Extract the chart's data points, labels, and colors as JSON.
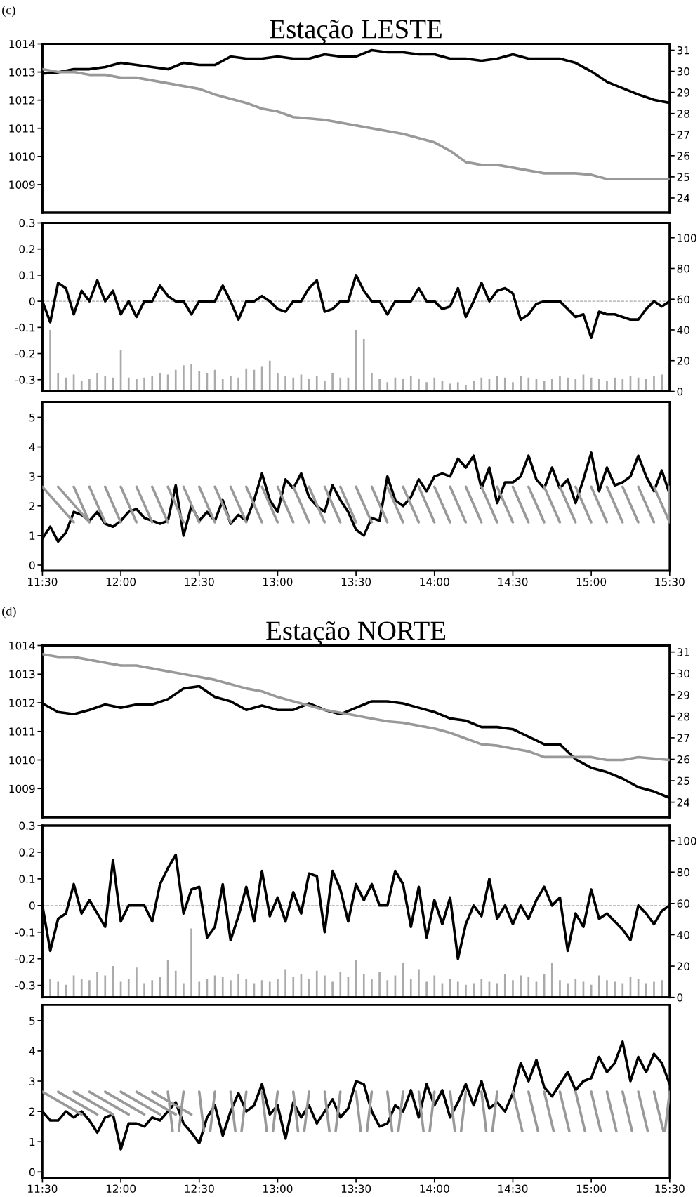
{
  "chart_data": [
    {
      "type": "line",
      "title": "Estação LESTE",
      "annotations": [
        "(c)"
      ],
      "x": [
        11.5,
        11.6,
        11.7,
        11.8,
        11.9,
        12.0,
        12.1,
        12.2,
        12.3,
        12.4,
        12.5,
        12.6,
        12.7,
        12.8,
        12.9,
        13.0,
        13.1,
        13.2,
        13.3,
        13.4,
        13.5,
        13.6,
        13.7,
        13.8,
        13.9,
        14.0,
        14.1,
        14.2,
        14.3,
        14.4,
        14.5,
        14.6,
        14.7,
        14.8,
        14.9,
        15.0,
        15.1,
        15.2,
        15.3,
        15.4,
        15.5
      ],
      "series": [
        {
          "color": "#999999",
          "values": [
            1013.1,
            1013.0,
            1013.0,
            1012.9,
            1012.9,
            1012.8,
            1012.8,
            1012.7,
            1012.6,
            1012.5,
            1012.4,
            1012.2,
            1012.05,
            1011.9,
            1011.7,
            1011.6,
            1011.4,
            1011.35,
            1011.3,
            1011.2,
            1011.1,
            1011.0,
            1010.9,
            1010.8,
            1010.65,
            1010.5,
            1010.2,
            1009.8,
            1009.7,
            1009.7,
            1009.6,
            1009.5,
            1009.4,
            1009.4,
            1009.4,
            1009.35,
            1009.2,
            1009.2,
            1009.2,
            1009.2,
            1009.2
          ]
        },
        {
          "color": "#000000",
          "axis": "y2",
          "values": [
            29.9,
            29.95,
            30.1,
            30.1,
            30.2,
            30.4,
            30.3,
            30.2,
            30.1,
            30.4,
            30.3,
            30.3,
            30.7,
            30.6,
            30.6,
            30.7,
            30.6,
            30.6,
            30.8,
            30.7,
            30.7,
            31.0,
            30.9,
            30.9,
            30.8,
            30.8,
            30.6,
            30.6,
            30.5,
            30.6,
            30.8,
            30.6,
            30.6,
            30.6,
            30.4,
            30.0,
            29.5,
            29.2,
            28.9,
            28.65,
            28.5
          ]
        }
      ],
      "xlim": [
        11.5,
        15.5
      ],
      "ylim": [
        1008,
        1014
      ],
      "yticks": [
        1009,
        1010,
        1011,
        1012,
        1013,
        1014
      ],
      "y2lim": [
        23.3,
        31.3
      ],
      "y2ticks": [
        24,
        25,
        26,
        27,
        28,
        29,
        30,
        31
      ],
      "tick_labels": "y"
    },
    {
      "type": "line",
      "x": [
        11.5,
        11.55,
        11.6,
        11.65,
        11.7,
        11.75,
        11.8,
        11.85,
        11.9,
        11.95,
        12.0,
        12.05,
        12.1,
        12.15,
        12.2,
        12.25,
        12.3,
        12.35,
        12.4,
        12.45,
        12.5,
        12.55,
        12.6,
        12.65,
        12.7,
        12.75,
        12.8,
        12.85,
        12.9,
        12.95,
        13.0,
        13.05,
        13.1,
        13.15,
        13.2,
        13.25,
        13.3,
        13.35,
        13.4,
        13.45,
        13.5,
        13.55,
        13.6,
        13.65,
        13.7,
        13.75,
        13.8,
        13.85,
        13.9,
        13.95,
        14.0,
        14.05,
        14.1,
        14.15,
        14.2,
        14.25,
        14.3,
        14.35,
        14.4,
        14.45,
        14.5,
        14.55,
        14.6,
        14.65,
        14.7,
        14.75,
        14.8,
        14.85,
        14.9,
        14.95,
        15.0,
        15.05,
        15.1,
        15.15,
        15.2,
        15.25,
        15.3,
        15.35,
        15.4,
        15.45,
        15.5
      ],
      "series": [
        {
          "type": "bar",
          "axis": "y2",
          "color": "#aaaaaa",
          "values": [
            null,
            40,
            12,
            9,
            11,
            7,
            8,
            12,
            10,
            9,
            27,
            9,
            8,
            9,
            10,
            12,
            11,
            14,
            17,
            18,
            13,
            12,
            14,
            8,
            10,
            9,
            15,
            14,
            16,
            20,
            12,
            10,
            9,
            11,
            8,
            10,
            7,
            12,
            9,
            9,
            40,
            34,
            12,
            8,
            6,
            9,
            8,
            10,
            8,
            6,
            9,
            7,
            5,
            6,
            4,
            7,
            9,
            8,
            10,
            9,
            6,
            10,
            9,
            8,
            7,
            8,
            10,
            9,
            8,
            11,
            9,
            8,
            7,
            9,
            8,
            10,
            9,
            8,
            10,
            11,
            null
          ]
        },
        {
          "color": "#000000",
          "values": [
            0.0,
            -0.08,
            0.07,
            0.05,
            -0.05,
            0.04,
            0.0,
            0.08,
            0.0,
            0.04,
            -0.05,
            0.0,
            -0.06,
            0.0,
            0.0,
            0.06,
            0.02,
            0.0,
            0.0,
            -0.05,
            0.0,
            0.0,
            0.0,
            0.06,
            0.0,
            -0.07,
            0.0,
            0.0,
            0.02,
            0.0,
            -0.03,
            -0.04,
            0.0,
            0.0,
            0.05,
            0.08,
            -0.04,
            -0.03,
            0.0,
            0.0,
            0.1,
            0.04,
            0.0,
            0.0,
            -0.05,
            0.0,
            0.0,
            0.0,
            0.05,
            0.0,
            0.0,
            -0.03,
            -0.02,
            0.05,
            -0.06,
            0.0,
            0.07,
            0.0,
            0.04,
            0.05,
            0.03,
            -0.07,
            -0.05,
            -0.01,
            0.0,
            0.0,
            0.0,
            -0.03,
            -0.06,
            -0.05,
            -0.14,
            -0.04,
            -0.05,
            -0.05,
            -0.06,
            -0.07,
            -0.07,
            -0.03,
            0.0,
            -0.02,
            0.0
          ]
        }
      ],
      "xlim": [
        11.5,
        15.5
      ],
      "ylim": [
        -0.345,
        0.3
      ],
      "yticks": [
        -0.3,
        -0.2,
        -0.1,
        0,
        0.1,
        0.2,
        0.3
      ],
      "y2lim": [
        0,
        109.7
      ],
      "y2ticks": [
        0,
        20,
        40,
        60,
        80,
        100
      ],
      "tick_labels": "y",
      "ref_lines": [
        {
          "axis": "y",
          "value": 0,
          "color": "#aaaaaa",
          "line_style": "dashed"
        }
      ]
    },
    {
      "type": "line",
      "x": [
        11.5,
        11.55,
        11.6,
        11.65,
        11.7,
        11.75,
        11.8,
        11.85,
        11.9,
        11.95,
        12.0,
        12.05,
        12.1,
        12.15,
        12.2,
        12.25,
        12.3,
        12.35,
        12.4,
        12.45,
        12.5,
        12.55,
        12.6,
        12.65,
        12.7,
        12.75,
        12.8,
        12.85,
        12.9,
        12.95,
        13.0,
        13.05,
        13.1,
        13.15,
        13.2,
        13.25,
        13.3,
        13.35,
        13.4,
        13.45,
        13.5,
        13.55,
        13.6,
        13.65,
        13.7,
        13.75,
        13.8,
        13.85,
        13.9,
        13.95,
        14.0,
        14.05,
        14.1,
        14.15,
        14.2,
        14.25,
        14.3,
        14.35,
        14.4,
        14.45,
        14.5,
        14.55,
        14.6,
        14.65,
        14.7,
        14.75,
        14.8,
        14.85,
        14.9,
        14.95,
        15.0,
        15.05,
        15.1,
        15.15,
        15.2,
        15.25,
        15.3,
        15.35,
        15.4,
        15.45,
        15.5
      ],
      "series": [
        {
          "color": "#000000",
          "values": [
            0.9,
            1.3,
            0.8,
            1.1,
            1.8,
            1.7,
            1.5,
            1.8,
            1.4,
            1.3,
            1.5,
            1.8,
            1.9,
            1.6,
            1.5,
            1.4,
            1.5,
            2.7,
            1.0,
            2.0,
            1.5,
            1.8,
            1.5,
            2.2,
            1.4,
            1.7,
            1.5,
            2.2,
            3.1,
            2.2,
            1.8,
            2.9,
            2.6,
            3.1,
            2.3,
            2.0,
            1.8,
            2.7,
            2.2,
            1.8,
            1.2,
            1.0,
            1.6,
            1.5,
            3.0,
            2.2,
            2.0,
            2.3,
            2.9,
            2.5,
            3.0,
            3.1,
            3.0,
            3.6,
            3.3,
            3.7,
            2.6,
            3.3,
            2.1,
            2.8,
            2.8,
            3.0,
            3.7,
            2.9,
            2.6,
            3.3,
            2.6,
            2.9,
            2.1,
            2.9,
            3.8,
            2.5,
            3.3,
            2.7,
            2.8,
            3.0,
            3.7,
            3.0,
            2.5,
            3.2,
            2.4
          ]
        },
        {
          "color": "#999999",
          "x": [
            11.5,
            11.7,
            null,
            11.6,
            11.8,
            null,
            11.7,
            11.8,
            null,
            11.8,
            11.9,
            null,
            11.9,
            12.0,
            null,
            12.0,
            12.1,
            null,
            12.1,
            12.2,
            null,
            12.2,
            12.3,
            null,
            12.3,
            12.4,
            null,
            12.4,
            12.5,
            null,
            12.5,
            12.6,
            null,
            12.6,
            12.7,
            null,
            12.7,
            12.8,
            null,
            12.8,
            12.9,
            null,
            12.9,
            13.0,
            null,
            13.0,
            13.1,
            null,
            13.1,
            13.2,
            null,
            13.2,
            13.3,
            null,
            13.3,
            13.4,
            null,
            13.4,
            13.5,
            null,
            13.5,
            13.6,
            null,
            13.6,
            13.7,
            null,
            13.7,
            13.8,
            null,
            13.8,
            13.9,
            null,
            13.9,
            14.0,
            null,
            14.0,
            14.1,
            null,
            14.1,
            14.2,
            null,
            14.2,
            14.3,
            null,
            14.3,
            14.4,
            null,
            14.4,
            14.5,
            null,
            14.5,
            14.6,
            null,
            14.6,
            14.7,
            null,
            14.7,
            14.8,
            null,
            14.8,
            14.9,
            null,
            14.9,
            15.0,
            null,
            15.0,
            15.1,
            null,
            15.1,
            15.2,
            null,
            15.2,
            15.3,
            null,
            15.3,
            15.4,
            null,
            15.4,
            15.5,
            null,
            15.5,
            15.5,
            null
          ],
          "values": [
            2.65,
            1.45,
            null,
            2.65,
            1.45,
            null,
            2.65,
            1.45,
            null,
            2.65,
            1.45,
            null,
            2.65,
            1.45,
            null,
            2.65,
            1.45,
            null,
            2.65,
            1.45,
            null,
            2.65,
            1.45,
            null,
            2.65,
            1.45,
            null,
            2.65,
            1.45,
            null,
            2.65,
            1.45,
            null,
            2.65,
            1.45,
            null,
            2.65,
            1.45,
            null,
            2.65,
            1.45,
            null,
            2.65,
            1.45,
            null,
            2.65,
            1.45,
            null,
            2.65,
            1.45,
            null,
            2.65,
            1.45,
            null,
            2.65,
            1.45,
            null,
            2.65,
            1.45,
            null,
            2.65,
            1.45,
            null,
            2.65,
            1.45,
            null,
            2.65,
            1.45,
            null,
            2.65,
            1.45,
            null,
            2.65,
            1.45,
            null,
            2.65,
            1.45,
            null,
            2.65,
            1.45,
            null,
            2.65,
            1.45,
            null,
            2.65,
            1.45,
            null,
            2.65,
            1.45,
            null,
            2.65,
            1.45,
            null,
            2.65,
            1.45,
            null,
            2.65,
            1.45,
            null,
            2.65,
            1.45,
            null,
            2.65,
            1.45,
            null,
            2.65,
            1.45,
            null,
            2.65,
            1.45,
            null,
            2.65,
            1.45,
            null,
            2.65,
            1.45,
            null,
            2.65,
            1.45,
            null,
            2.65,
            1.45,
            null
          ]
        }
      ],
      "xlim": [
        11.5,
        15.5
      ],
      "ylim": [
        -0.19,
        5.52
      ],
      "yticks": [
        0,
        1,
        2,
        3,
        4,
        5
      ],
      "xticks": [
        {
          "value": 11.5,
          "label": "11:30"
        },
        {
          "value": 12.0,
          "label": "12:00"
        },
        {
          "value": 12.5,
          "label": "12:30"
        },
        {
          "value": 13.0,
          "label": "13:00"
        },
        {
          "value": 13.5,
          "label": "13:30"
        },
        {
          "value": 14.0,
          "label": "14:00"
        },
        {
          "value": 14.5,
          "label": "14:30"
        },
        {
          "value": 15.0,
          "label": "15:00"
        },
        {
          "value": 15.5,
          "label": "15:30"
        }
      ]
    },
    {
      "type": "line",
      "title": "Estação NORTE",
      "annotations": [
        "(d)"
      ],
      "x": [
        11.5,
        11.6,
        11.7,
        11.8,
        11.9,
        12.0,
        12.1,
        12.2,
        12.3,
        12.4,
        12.5,
        12.6,
        12.7,
        12.8,
        12.9,
        13.0,
        13.1,
        13.2,
        13.3,
        13.4,
        13.5,
        13.6,
        13.7,
        13.8,
        13.9,
        14.0,
        14.1,
        14.2,
        14.3,
        14.4,
        14.5,
        14.6,
        14.7,
        14.8,
        14.9,
        15.0,
        15.1,
        15.2,
        15.3,
        15.4,
        15.5
      ],
      "series": [
        {
          "color": "#999999",
          "values": [
            1013.7,
            1013.6,
            1013.6,
            1013.5,
            1013.4,
            1013.3,
            1013.3,
            1013.2,
            1013.1,
            1013.0,
            1012.9,
            1012.8,
            1012.65,
            1012.5,
            1012.4,
            1012.2,
            1012.05,
            1011.9,
            1011.75,
            1011.65,
            1011.55,
            1011.45,
            1011.35,
            1011.3,
            1011.2,
            1011.1,
            1010.95,
            1010.75,
            1010.55,
            1010.5,
            1010.4,
            1010.3,
            1010.1,
            1010.1,
            1010.1,
            1010.1,
            1010.0,
            1010.0,
            1010.1,
            1010.05,
            1010.0
          ]
        },
        {
          "color": "#000000",
          "axis": "y2",
          "values": [
            28.6,
            28.2,
            28.1,
            28.3,
            28.55,
            28.4,
            28.55,
            28.55,
            28.8,
            29.3,
            29.4,
            28.9,
            28.7,
            28.3,
            28.5,
            28.3,
            28.3,
            28.6,
            28.3,
            28.1,
            28.4,
            28.7,
            28.7,
            28.6,
            28.4,
            28.2,
            27.9,
            27.8,
            27.5,
            27.5,
            27.4,
            27.05,
            26.7,
            26.7,
            26.0,
            25.6,
            25.4,
            25.1,
            24.7,
            24.5,
            24.2
          ]
        }
      ],
      "xlim": [
        11.5,
        15.5
      ],
      "ylim": [
        1008,
        1014
      ],
      "yticks": [
        1009,
        1010,
        1011,
        1012,
        1013,
        1014
      ],
      "y2lim": [
        23.3,
        31.3
      ],
      "y2ticks": [
        24,
        25,
        26,
        27,
        28,
        29,
        30,
        31
      ],
      "tick_labels": "y"
    },
    {
      "type": "line",
      "x": [
        11.5,
        11.55,
        11.6,
        11.65,
        11.7,
        11.75,
        11.8,
        11.85,
        11.9,
        11.95,
        12.0,
        12.05,
        12.1,
        12.15,
        12.2,
        12.25,
        12.3,
        12.35,
        12.4,
        12.45,
        12.5,
        12.55,
        12.6,
        12.65,
        12.7,
        12.75,
        12.8,
        12.85,
        12.9,
        12.95,
        13.0,
        13.05,
        13.1,
        13.15,
        13.2,
        13.25,
        13.3,
        13.35,
        13.4,
        13.45,
        13.5,
        13.55,
        13.6,
        13.65,
        13.7,
        13.75,
        13.8,
        13.85,
        13.9,
        13.95,
        14.0,
        14.05,
        14.1,
        14.15,
        14.2,
        14.25,
        14.3,
        14.35,
        14.4,
        14.45,
        14.5,
        14.55,
        14.6,
        14.65,
        14.7,
        14.75,
        14.8,
        14.85,
        14.9,
        14.95,
        15.0,
        15.05,
        15.1,
        15.15,
        15.2,
        15.25,
        15.3,
        15.35,
        15.4,
        15.45,
        15.5
      ],
      "series": [
        {
          "type": "bar",
          "axis": "y2",
          "color": "#aaaaaa",
          "values": [
            null,
            12,
            10,
            8,
            14,
            12,
            11,
            16,
            14,
            20,
            10,
            12,
            19,
            9,
            11,
            13,
            24,
            17,
            9,
            44,
            10,
            12,
            14,
            13,
            11,
            15,
            12,
            9,
            11,
            10,
            12,
            18,
            13,
            15,
            12,
            17,
            14,
            10,
            16,
            13,
            24,
            15,
            12,
            16,
            11,
            14,
            22,
            12,
            18,
            10,
            14,
            9,
            12,
            10,
            8,
            9,
            12,
            10,
            9,
            15,
            11,
            14,
            13,
            10,
            15,
            22,
            11,
            9,
            12,
            10,
            8,
            14,
            11,
            10,
            9,
            13,
            12,
            9,
            10,
            11,
            null
          ]
        },
        {
          "color": "#000000",
          "values": [
            0.0,
            -0.17,
            -0.05,
            -0.03,
            0.08,
            -0.03,
            0.02,
            -0.03,
            -0.08,
            0.17,
            -0.06,
            0.0,
            0.0,
            0.0,
            -0.06,
            0.08,
            0.14,
            0.19,
            -0.03,
            0.06,
            0.07,
            -0.12,
            -0.08,
            0.08,
            -0.13,
            -0.04,
            0.07,
            -0.06,
            0.13,
            -0.04,
            0.03,
            -0.06,
            0.05,
            -0.03,
            0.12,
            0.11,
            -0.1,
            0.13,
            0.06,
            -0.06,
            0.08,
            0.02,
            0.08,
            0.0,
            0.0,
            0.13,
            0.08,
            -0.08,
            0.07,
            -0.12,
            0.02,
            -0.07,
            0.03,
            -0.2,
            -0.07,
            0.0,
            -0.04,
            0.1,
            -0.05,
            0.0,
            -0.07,
            0.0,
            -0.05,
            0.02,
            0.07,
            0.0,
            0.03,
            -0.17,
            -0.03,
            -0.08,
            0.06,
            -0.05,
            -0.03,
            -0.06,
            -0.09,
            -0.13,
            0.0,
            -0.03,
            -0.07,
            -0.02,
            0.0
          ]
        }
      ],
      "xlim": [
        11.5,
        15.5
      ],
      "ylim": [
        -0.345,
        0.3
      ],
      "yticks": [
        -0.3,
        -0.2,
        -0.1,
        0,
        0.1,
        0.2,
        0.3
      ],
      "y2lim": [
        0,
        109.7
      ],
      "y2ticks": [
        0,
        20,
        40,
        60,
        80,
        100
      ],
      "tick_labels": "y",
      "ref_lines": [
        {
          "axis": "y",
          "value": 0,
          "color": "#aaaaaa",
          "line_style": "dashed"
        }
      ]
    },
    {
      "type": "line",
      "x": [
        11.5,
        11.55,
        11.6,
        11.65,
        11.7,
        11.75,
        11.8,
        11.85,
        11.9,
        11.95,
        12.0,
        12.05,
        12.1,
        12.15,
        12.2,
        12.25,
        12.3,
        12.35,
        12.4,
        12.45,
        12.5,
        12.55,
        12.6,
        12.65,
        12.7,
        12.75,
        12.8,
        12.85,
        12.9,
        12.95,
        13.0,
        13.05,
        13.1,
        13.15,
        13.2,
        13.25,
        13.3,
        13.35,
        13.4,
        13.45,
        13.5,
        13.55,
        13.6,
        13.65,
        13.7,
        13.75,
        13.8,
        13.85,
        13.9,
        13.95,
        14.0,
        14.05,
        14.1,
        14.15,
        14.2,
        14.25,
        14.3,
        14.35,
        14.4,
        14.45,
        14.5,
        14.55,
        14.6,
        14.65,
        14.7,
        14.75,
        14.8,
        14.85,
        14.9,
        14.95,
        15.0,
        15.05,
        15.1,
        15.15,
        15.2,
        15.25,
        15.3,
        15.35,
        15.4,
        15.45,
        15.5
      ],
      "series": [
        {
          "color": "#000000",
          "values": [
            2.0,
            1.7,
            1.7,
            2.0,
            1.8,
            2.0,
            1.7,
            1.3,
            1.8,
            1.9,
            0.75,
            1.6,
            1.6,
            1.5,
            1.8,
            1.7,
            2.0,
            2.3,
            1.6,
            1.3,
            0.95,
            1.8,
            2.2,
            1.2,
            2.0,
            2.6,
            2.0,
            2.2,
            2.9,
            1.9,
            2.2,
            1.1,
            2.3,
            1.8,
            2.2,
            1.6,
            2.0,
            2.4,
            1.8,
            2.1,
            3.0,
            2.9,
            2.0,
            1.5,
            1.6,
            2.2,
            2.0,
            2.7,
            1.8,
            2.9,
            2.2,
            2.7,
            1.8,
            2.3,
            2.9,
            2.2,
            3.0,
            2.1,
            2.3,
            2.0,
            2.6,
            3.6,
            3.0,
            3.7,
            2.8,
            2.5,
            2.9,
            3.3,
            2.7,
            3.0,
            3.1,
            3.8,
            3.3,
            3.6,
            4.3,
            3.0,
            3.8,
            3.3,
            3.9,
            3.6,
            2.9
          ]
        },
        {
          "color": "#999999",
          "x": [
            11.5,
            11.75,
            null,
            11.6,
            11.85,
            null,
            11.7,
            11.95,
            null,
            11.8,
            12.05,
            null,
            11.9,
            12.15,
            null,
            12.0,
            12.25,
            null,
            12.1,
            12.35,
            null,
            12.2,
            12.45,
            null,
            12.3,
            12.33,
            null,
            12.4,
            12.37,
            null,
            12.5,
            12.53,
            null,
            12.6,
            12.57,
            null,
            12.7,
            12.73,
            null,
            12.8,
            12.77,
            null,
            12.9,
            12.93,
            null,
            13.0,
            12.97,
            null,
            13.1,
            13.13,
            null,
            13.2,
            13.17,
            null,
            13.3,
            13.33,
            null,
            13.4,
            13.37,
            null,
            13.5,
            13.53,
            null,
            13.6,
            13.57,
            null,
            13.7,
            13.73,
            null,
            13.8,
            13.77,
            null,
            13.9,
            13.93,
            null,
            14.0,
            13.97,
            null,
            14.1,
            14.13,
            null,
            14.2,
            14.17,
            null,
            14.3,
            14.33,
            null,
            14.4,
            14.37,
            null,
            14.5,
            14.56,
            null,
            14.6,
            14.66,
            null,
            14.7,
            14.76,
            null,
            14.8,
            14.86,
            null,
            14.9,
            14.96,
            null,
            15.0,
            15.06,
            null,
            15.1,
            15.16,
            null,
            15.2,
            15.26,
            null,
            15.3,
            15.36,
            null,
            15.4,
            15.46,
            null,
            15.5,
            15.47,
            null
          ],
          "values": [
            2.65,
            1.9,
            null,
            2.65,
            1.9,
            null,
            2.65,
            1.9,
            null,
            2.65,
            1.9,
            null,
            2.65,
            1.9,
            null,
            2.65,
            1.9,
            null,
            2.65,
            1.9,
            null,
            2.65,
            1.9,
            null,
            2.65,
            1.35,
            null,
            2.65,
            1.35,
            null,
            2.65,
            1.35,
            null,
            2.65,
            1.35,
            null,
            2.65,
            1.35,
            null,
            2.65,
            1.35,
            null,
            2.65,
            1.35,
            null,
            2.65,
            1.35,
            null,
            2.65,
            1.35,
            null,
            2.65,
            1.35,
            null,
            2.65,
            1.35,
            null,
            2.65,
            1.35,
            null,
            2.65,
            1.35,
            null,
            2.65,
            1.35,
            null,
            2.65,
            1.35,
            null,
            2.65,
            1.35,
            null,
            2.65,
            1.35,
            null,
            2.65,
            1.35,
            null,
            2.65,
            1.35,
            null,
            2.65,
            1.35,
            null,
            2.65,
            1.35,
            null,
            2.65,
            1.35,
            null,
            2.65,
            1.35,
            null,
            2.65,
            1.35,
            null,
            2.65,
            1.35,
            null,
            2.65,
            1.35,
            null,
            2.65,
            1.35,
            null,
            2.65,
            1.35,
            null,
            2.65,
            1.35,
            null,
            2.65,
            1.35,
            null,
            2.65,
            1.35,
            null,
            2.65,
            1.35,
            null,
            2.65,
            1.35,
            null
          ]
        }
      ],
      "xlim": [
        11.5,
        15.5
      ],
      "ylim": [
        -0.19,
        5.52
      ],
      "yticks": [
        0,
        1,
        2,
        3,
        4,
        5
      ],
      "xticks": [
        {
          "value": 11.5,
          "label": "11:30"
        },
        {
          "value": 12.0,
          "label": "12:00"
        },
        {
          "value": 12.5,
          "label": "12:30"
        },
        {
          "value": 13.0,
          "label": "13:00"
        },
        {
          "value": 13.5,
          "label": "13:30"
        },
        {
          "value": 14.0,
          "label": "14:00"
        },
        {
          "value": 14.5,
          "label": "14:30"
        },
        {
          "value": 15.0,
          "label": "15:00"
        },
        {
          "value": 15.5,
          "label": "15:30"
        }
      ]
    }
  ]
}
